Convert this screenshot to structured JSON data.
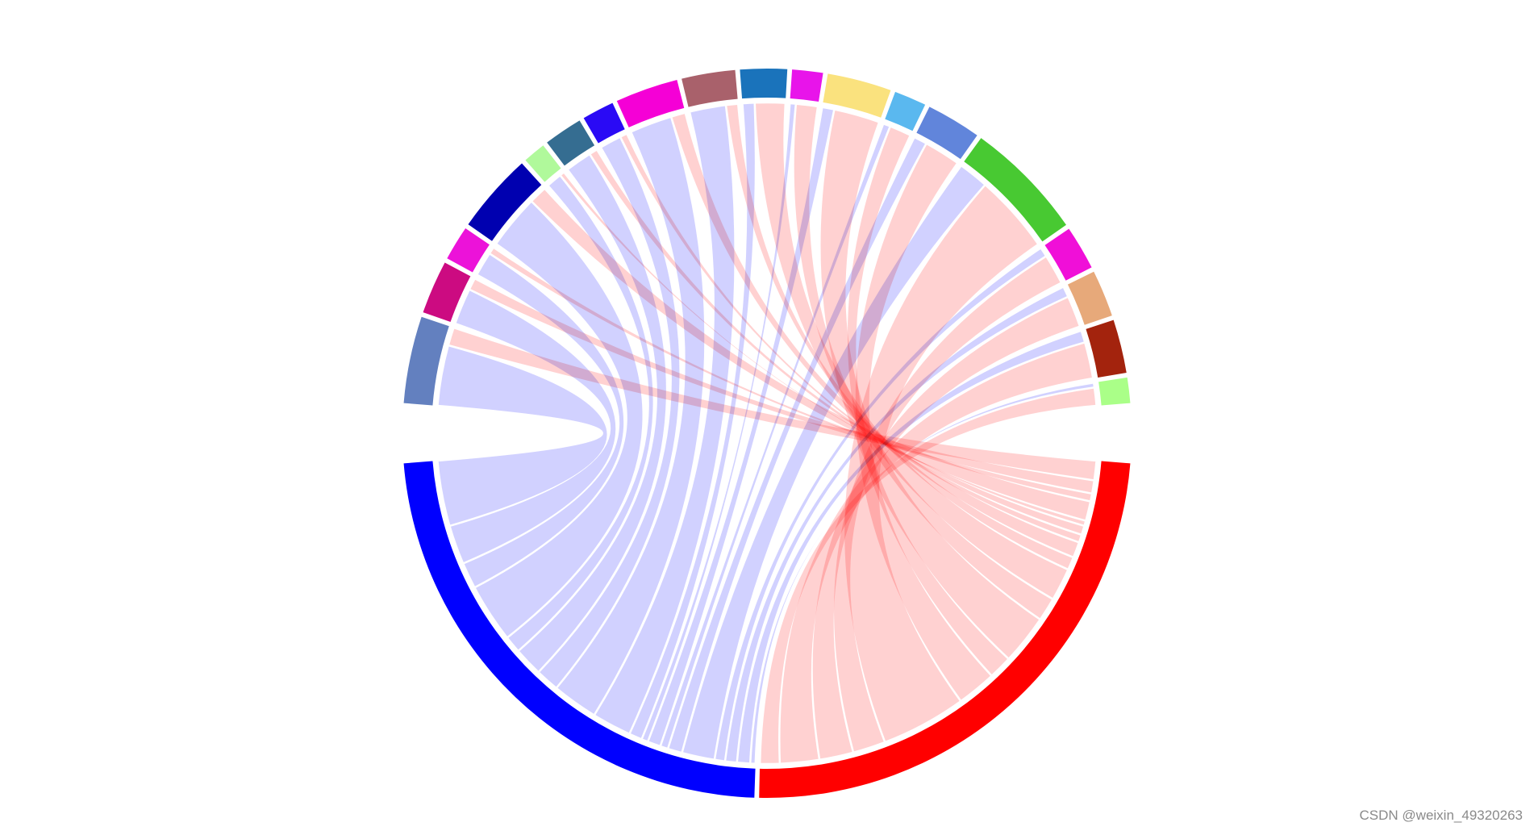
{
  "watermark": "CSDN @weixin_49320263",
  "chart_data": {
    "type": "chord",
    "title": "",
    "labels_shown": false,
    "link_colors": {
      "from_blue_group": "#ccccff",
      "from_red_group": "#ffcccc"
    },
    "sectors": [
      {
        "id": "blue",
        "color": "#0000ff",
        "group": "bottom"
      },
      {
        "id": "red",
        "color": "#ff0000",
        "group": "bottom"
      },
      {
        "id": "s1",
        "color": "#aaff88",
        "group": "top"
      },
      {
        "id": "s2",
        "color": "#a3230d",
        "group": "top"
      },
      {
        "id": "s3",
        "color": "#e7a97a",
        "group": "top"
      },
      {
        "id": "s4",
        "color": "#f00fd8",
        "group": "top"
      },
      {
        "id": "s5",
        "color": "#48c932",
        "group": "top"
      },
      {
        "id": "s6",
        "color": "#6185db",
        "group": "top"
      },
      {
        "id": "s7",
        "color": "#5ab8ef",
        "group": "top"
      },
      {
        "id": "s8",
        "color": "#fae27e",
        "group": "top"
      },
      {
        "id": "s9",
        "color": "#e814ea",
        "group": "top"
      },
      {
        "id": "s10",
        "color": "#1a73bb",
        "group": "top"
      },
      {
        "id": "s11",
        "color": "#a9616b",
        "group": "top"
      },
      {
        "id": "s12",
        "color": "#f500d6",
        "group": "top"
      },
      {
        "id": "s13",
        "color": "#2a0af5",
        "group": "top"
      },
      {
        "id": "s14",
        "color": "#356d91",
        "group": "top"
      },
      {
        "id": "s15",
        "color": "#b0f99b",
        "group": "top"
      },
      {
        "id": "s16",
        "color": "#0000b0",
        "group": "top"
      },
      {
        "id": "s17",
        "color": "#ec12d9",
        "group": "top"
      },
      {
        "id": "s18",
        "color": "#cc0b81",
        "group": "top"
      },
      {
        "id": "s19",
        "color": "#6380bf",
        "group": "top"
      }
    ],
    "links": [
      {
        "source": "blue",
        "target": "s19",
        "value": 5
      },
      {
        "source": "red",
        "target": "s19",
        "value": 1.5
      },
      {
        "source": "blue",
        "target": "s18",
        "value": 3
      },
      {
        "source": "red",
        "target": "s18",
        "value": 1
      },
      {
        "source": "blue",
        "target": "s17",
        "value": 2
      },
      {
        "source": "red",
        "target": "s17",
        "value": 0.6
      },
      {
        "source": "blue",
        "target": "s16",
        "value": 4.5
      },
      {
        "source": "red",
        "target": "s16",
        "value": 1.5
      },
      {
        "source": "blue",
        "target": "s15",
        "value": 1.3
      },
      {
        "source": "red",
        "target": "s15",
        "value": 0.4
      },
      {
        "source": "blue",
        "target": "s14",
        "value": 2.2
      },
      {
        "source": "red",
        "target": "s14",
        "value": 0.7
      },
      {
        "source": "blue",
        "target": "s13",
        "value": 1.8
      },
      {
        "source": "red",
        "target": "s13",
        "value": 0.6
      },
      {
        "source": "blue",
        "target": "s12",
        "value": 3.5
      },
      {
        "source": "red",
        "target": "s12",
        "value": 1.2
      },
      {
        "source": "blue",
        "target": "s11",
        "value": 3
      },
      {
        "source": "red",
        "target": "s11",
        "value": 1
      },
      {
        "source": "blue",
        "target": "s10",
        "value": 1
      },
      {
        "source": "red",
        "target": "s10",
        "value": 2.5
      },
      {
        "source": "blue",
        "target": "s9",
        "value": 0.5
      },
      {
        "source": "red",
        "target": "s9",
        "value": 1.8
      },
      {
        "source": "blue",
        "target": "s8",
        "value": 1
      },
      {
        "source": "red",
        "target": "s8",
        "value": 3.8
      },
      {
        "source": "blue",
        "target": "s7",
        "value": 0.6
      },
      {
        "source": "red",
        "target": "s7",
        "value": 1.8
      },
      {
        "source": "blue",
        "target": "s6",
        "value": 1.1
      },
      {
        "source": "red",
        "target": "s6",
        "value": 3
      },
      {
        "source": "blue",
        "target": "s5",
        "value": 2.5
      },
      {
        "source": "red",
        "target": "s5",
        "value": 6.5
      },
      {
        "source": "blue",
        "target": "s4",
        "value": 0.8
      },
      {
        "source": "red",
        "target": "s4",
        "value": 2.5
      },
      {
        "source": "blue",
        "target": "s3",
        "value": 0.9
      },
      {
        "source": "red",
        "target": "s3",
        "value": 2.6
      },
      {
        "source": "blue",
        "target": "s2",
        "value": 1
      },
      {
        "source": "red",
        "target": "s2",
        "value": 3
      },
      {
        "source": "blue",
        "target": "s1",
        "value": 0.4
      },
      {
        "source": "red",
        "target": "s1",
        "value": 1.5
      }
    ]
  }
}
